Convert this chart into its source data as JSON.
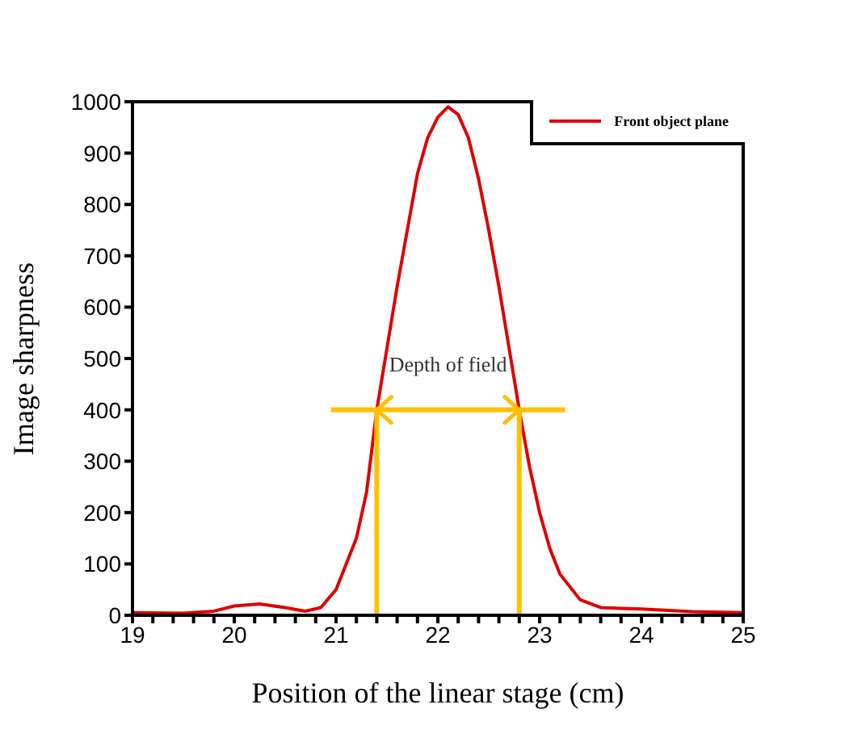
{
  "chart_data": {
    "type": "line",
    "xlabel": "Position of the linear stage (cm)",
    "ylabel": "Image sharpness",
    "xlim": [
      19,
      25
    ],
    "ylim": [
      0,
      1000
    ],
    "xticks": [
      19,
      {
        "value": 19.2,
        "label": null
      },
      {
        "value": 19.4,
        "label": null
      },
      {
        "value": 19.6,
        "label": null
      },
      {
        "value": 19.8,
        "label": null
      },
      20,
      {
        "value": 20.2,
        "label": null
      },
      {
        "value": 20.4,
        "label": null
      },
      {
        "value": 20.6,
        "label": null
      },
      {
        "value": 20.8,
        "label": null
      },
      21,
      {
        "value": 21.2,
        "label": null
      },
      {
        "value": 21.4,
        "label": null
      },
      {
        "value": 21.6,
        "label": null
      },
      {
        "value": 21.8,
        "label": null
      },
      22,
      {
        "value": 22.2,
        "label": null
      },
      {
        "value": 22.4,
        "label": null
      },
      {
        "value": 22.6,
        "label": null
      },
      {
        "value": 22.8,
        "label": null
      },
      23,
      {
        "value": 23.2,
        "label": null
      },
      {
        "value": 23.4,
        "label": null
      },
      {
        "value": 23.6,
        "label": null
      },
      {
        "value": 23.8,
        "label": null
      },
      24,
      {
        "value": 24.2,
        "label": null
      },
      {
        "value": 24.4,
        "label": null
      },
      {
        "value": 24.6,
        "label": null
      },
      {
        "value": 24.8,
        "label": null
      },
      25
    ],
    "yticks": [
      0,
      100,
      200,
      300,
      400,
      500,
      600,
      700,
      800,
      900,
      1000
    ],
    "legend": "top right",
    "grid": false,
    "series": [
      {
        "name": "Front object plane",
        "color": "#dd0000",
        "x": [
          19,
          19.5,
          19.8,
          20,
          20.25,
          20.5,
          20.7,
          20.85,
          21,
          21.2,
          21.3,
          21.4,
          21.5,
          21.6,
          21.7,
          21.8,
          21.9,
          22,
          22.1,
          22.2,
          22.3,
          22.4,
          22.5,
          22.6,
          22.7,
          22.8,
          22.9,
          23,
          23.1,
          23.2,
          23.4,
          23.6,
          24,
          24.5,
          25
        ],
        "values": [
          5,
          4,
          8,
          18,
          22,
          15,
          8,
          15,
          50,
          150,
          240,
          400,
          520,
          640,
          750,
          860,
          930,
          970,
          990,
          975,
          930,
          850,
          750,
          640,
          520,
          400,
          290,
          200,
          130,
          80,
          30,
          15,
          12,
          7,
          5
        ]
      },
      {
        "type": "line",
        "color": "#ffc000",
        "x": [
          20.95,
          21.4,
          22.8,
          23.25
        ],
        "values": [
          400,
          400,
          400,
          400
        ]
      },
      {
        "type": "line",
        "color": "#ffc000",
        "x": [
          21.4,
          21.4
        ],
        "values": [
          0,
          400
        ]
      },
      {
        "type": "line",
        "color": "#ffc000",
        "x": [
          22.8,
          22.8
        ],
        "values": [
          0,
          400
        ]
      }
    ],
    "annotations": [
      {
        "text": "Depth of field",
        "x": 22.1,
        "y": 400
      }
    ]
  }
}
